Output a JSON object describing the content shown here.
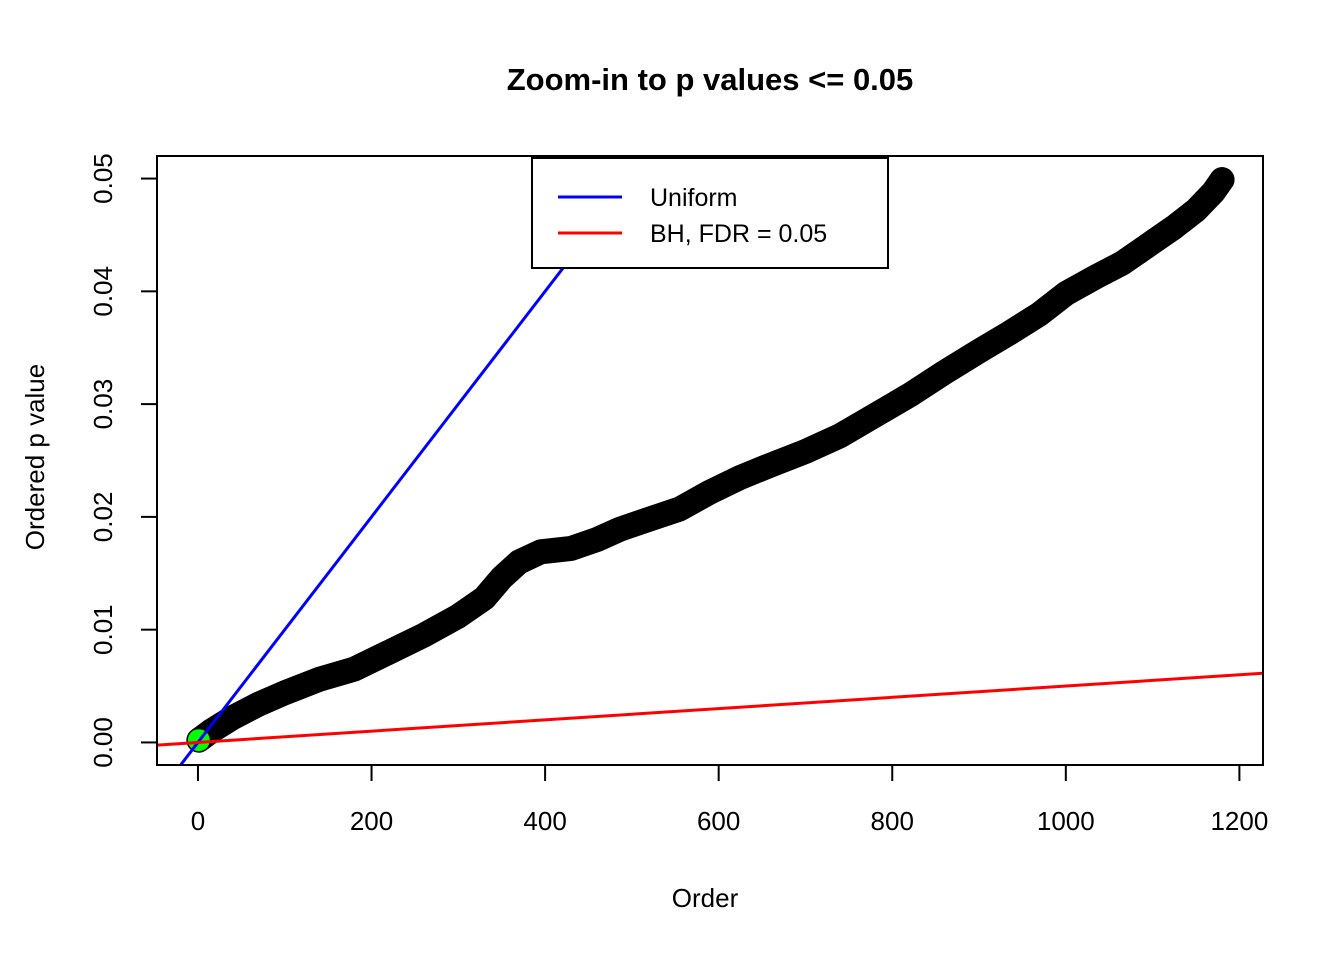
{
  "page": {
    "background": "#FFFFFF"
  },
  "chart_data": {
    "type": "scatter",
    "title": "Zoom-in to p values <= 0.05",
    "xlabel": "Order",
    "ylabel": "Ordered p value",
    "xlim": [
      -47.2,
      1227.2
    ],
    "ylim": [
      -0.002,
      0.052
    ],
    "grid": false,
    "x_ticks": {
      "values": [
        0,
        200,
        400,
        600,
        800,
        1000,
        1200
      ],
      "labels": [
        "0",
        "200",
        "400",
        "600",
        "800",
        "1000",
        "1200"
      ]
    },
    "y_ticks": {
      "values": [
        0.0,
        0.01,
        0.02,
        0.03,
        0.04,
        0.05
      ],
      "labels": [
        "0.00",
        "0.01",
        "0.02",
        "0.03",
        "0.04",
        "0.05"
      ]
    },
    "series": [
      {
        "name": "ordered-p-values",
        "type": "points",
        "color": "#000000",
        "marker": "filled-circle",
        "n_points_approx": 1180,
        "anchor_points": [
          [
            1,
            0.0002
          ],
          [
            15,
            0.001
          ],
          [
            40,
            0.0022
          ],
          [
            70,
            0.0034
          ],
          [
            100,
            0.0044
          ],
          [
            140,
            0.0056
          ],
          [
            180,
            0.0065
          ],
          [
            220,
            0.008
          ],
          [
            260,
            0.0095
          ],
          [
            300,
            0.0112
          ],
          [
            330,
            0.0128
          ],
          [
            350,
            0.0146
          ],
          [
            370,
            0.016
          ],
          [
            395,
            0.0169
          ],
          [
            430,
            0.0172
          ],
          [
            460,
            0.018
          ],
          [
            486,
            0.0189
          ],
          [
            520,
            0.0198
          ],
          [
            555,
            0.0207
          ],
          [
            590,
            0.0222
          ],
          [
            625,
            0.0235
          ],
          [
            660,
            0.0246
          ],
          [
            700,
            0.0258
          ],
          [
            740,
            0.0272
          ],
          [
            780,
            0.029
          ],
          [
            820,
            0.0308
          ],
          [
            860,
            0.0328
          ],
          [
            900,
            0.0347
          ],
          [
            935,
            0.0363
          ],
          [
            970,
            0.038
          ],
          [
            1000,
            0.0398
          ],
          [
            1035,
            0.0413
          ],
          [
            1065,
            0.0425
          ],
          [
            1095,
            0.0441
          ],
          [
            1125,
            0.0457
          ],
          [
            1150,
            0.0472
          ],
          [
            1170,
            0.0488
          ],
          [
            1180,
            0.0499
          ]
        ]
      },
      {
        "name": "uniform-reference",
        "type": "line",
        "color": "#0000FF",
        "slope": 0.0001,
        "intercept": 0
      },
      {
        "name": "bh-threshold",
        "type": "line",
        "color": "#FF0000",
        "slope": 5e-06,
        "intercept": 0
      },
      {
        "name": "smallest-p-highlight",
        "type": "point",
        "color": "#00FF00",
        "x": 1,
        "y": 0.0002
      }
    ],
    "legend": {
      "position": "top-center",
      "border": true,
      "entries": [
        {
          "label": "Uniform",
          "color": "#0000FF"
        },
        {
          "label": "BH, FDR = 0.05",
          "color": "#FF0000"
        }
      ]
    }
  }
}
